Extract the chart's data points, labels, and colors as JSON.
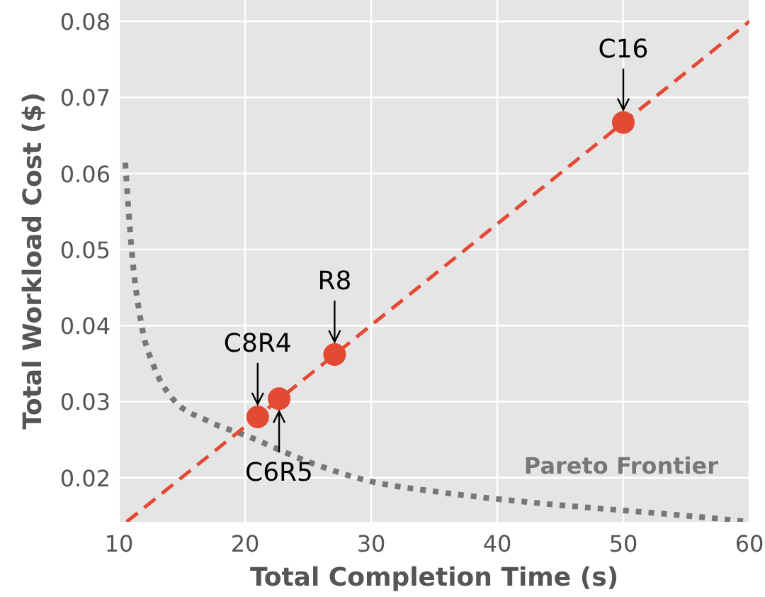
{
  "chart_data": {
    "type": "scatter",
    "xlabel": "Total Completion Time (s)",
    "ylabel": "Total Workload Cost ($)",
    "xlim": [
      10,
      60
    ],
    "xticks": [
      10,
      20,
      30,
      40,
      50,
      60
    ],
    "ylim": [
      0.0142,
      0.0828
    ],
    "yticks": [
      0.02,
      0.03,
      0.04,
      0.05,
      0.06,
      0.07,
      0.08
    ],
    "grid": true,
    "series": [
      {
        "type": "line",
        "name": "Pareto Frontier",
        "color": "#777777",
        "line_style": "dotted",
        "marker": "none",
        "x": [
          10.5,
          11,
          11.8,
          12.8,
          14.2,
          17,
          20,
          25,
          30,
          35,
          40,
          45,
          50,
          55,
          60
        ],
        "values": [
          0.0614,
          0.05,
          0.04,
          0.0345,
          0.0305,
          0.0275,
          0.0256,
          0.0221,
          0.0195,
          0.0182,
          0.0172,
          0.0164,
          0.0157,
          0.015,
          0.0142
        ]
      },
      {
        "type": "line",
        "color": "#e24a33",
        "line_style": "dashed",
        "marker": "none",
        "x": [
          10.6,
          60
        ],
        "values": [
          0.0142,
          0.08
        ]
      },
      {
        "color": "#e24a33",
        "marker": "circle",
        "x": [
          21,
          22.7,
          27.1,
          50
        ],
        "values": [
          0.028,
          0.0304,
          0.0362,
          0.0667
        ]
      }
    ],
    "annotations": [
      {
        "text": "C16",
        "x": 50,
        "y": 0.0667
      },
      {
        "text": "R8",
        "x": 27.1,
        "y": 0.0362
      },
      {
        "text": "C8R4",
        "x": 21,
        "y": 0.028
      },
      {
        "text": "C6R5",
        "x": 22.7,
        "y": 0.0304
      }
    ]
  }
}
